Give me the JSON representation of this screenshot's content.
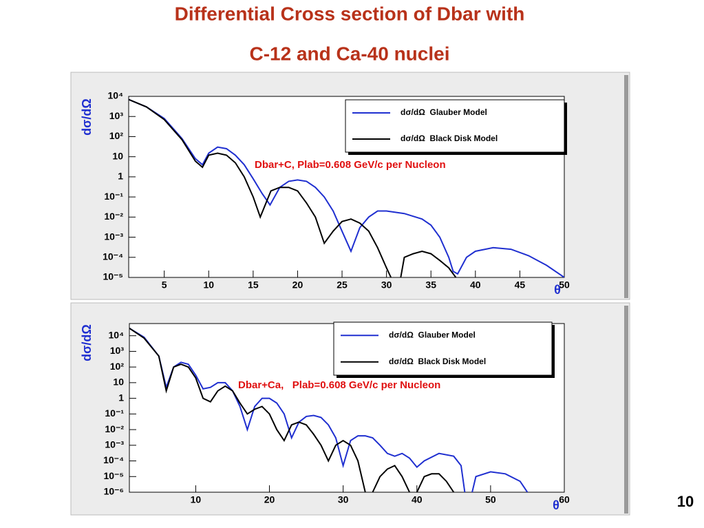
{
  "slide": {
    "title": [
      "Differential Cross section of Dbar  with",
      "C-12 and Ca-40 nuclei"
    ],
    "page_number": "10"
  },
  "chart_data": [
    {
      "type": "line",
      "log_y": true,
      "ylabel": "dσ/dΩ",
      "xlabel": "θ",
      "annotation": "Dbar+C, Plab=0.608 GeV/c per Nucleon",
      "xlim": [
        1,
        50
      ],
      "xticks": [
        5,
        10,
        15,
        20,
        25,
        30,
        35,
        40,
        45,
        50
      ],
      "ylim": [
        1e-05,
        10000
      ],
      "yticks": [
        {
          "value": 10000,
          "label": "10⁴"
        },
        {
          "value": 1000,
          "label": "10³"
        },
        {
          "value": 100,
          "label": "10²"
        },
        10,
        1,
        {
          "value": 0.1,
          "label": "10⁻¹"
        },
        {
          "value": 0.01,
          "label": "10⁻²"
        },
        {
          "value": 0.001,
          "label": "10⁻³"
        },
        {
          "value": 0.0001,
          "label": "10⁻⁴"
        },
        {
          "value": 1e-05,
          "label": "10⁻⁵"
        }
      ],
      "series": [
        {
          "name": "dσ/dΩ  Glauber Model",
          "color": "#1f2fd0",
          "x": [
            1,
            3,
            5,
            7,
            8.5,
            9.3,
            10,
            11,
            12,
            13,
            14,
            15,
            16,
            16.9,
            18,
            19,
            20,
            21,
            22,
            23,
            24,
            25,
            26,
            27,
            28,
            29,
            30,
            32,
            34,
            35,
            36,
            37,
            37.5,
            38,
            39,
            40,
            42,
            44,
            46,
            48,
            50
          ],
          "values": [
            7000,
            3000,
            800,
            80,
            8,
            4,
            15,
            30,
            25,
            12,
            4,
            0.8,
            0.15,
            0.04,
            0.3,
            0.6,
            0.7,
            0.6,
            0.3,
            0.1,
            0.02,
            0.002,
            0.0002,
            0.003,
            0.01,
            0.02,
            0.02,
            0.015,
            0.008,
            0.004,
            0.001,
            0.0001,
            2e-05,
            1.5e-05,
            0.0001,
            0.0002,
            0.0003,
            0.00025,
            0.00012,
            4e-05,
            1e-05
          ]
        },
        {
          "name": "dσ/dΩ  Black Disk Model",
          "color": "#000000",
          "x": [
            1,
            3,
            5,
            7,
            8.5,
            9.3,
            10,
            11,
            12,
            13,
            14,
            15,
            15.8,
            17,
            18,
            19,
            20,
            21,
            22,
            23,
            24,
            25,
            26,
            27,
            28,
            29,
            30,
            30.5,
            31,
            31.6,
            32,
            33,
            34,
            35,
            36,
            37,
            37.8
          ],
          "values": [
            7000,
            3000,
            700,
            70,
            6,
            3,
            12,
            15,
            12,
            5,
            1,
            0.1,
            0.01,
            0.2,
            0.3,
            0.3,
            0.2,
            0.05,
            0.01,
            0.0005,
            0.002,
            0.006,
            0.008,
            0.005,
            0.002,
            0.0003,
            3e-05,
            1e-05,
            null,
            1e-05,
            0.0001,
            0.00015,
            0.0002,
            0.00015,
            7e-05,
            3e-05,
            1e-05
          ]
        }
      ]
    },
    {
      "type": "line",
      "log_y": true,
      "ylabel": "dσ/dΩ",
      "xlabel": "θ",
      "annotation": "Dbar+Ca,   Plab=0.608 GeV/c per Nucleon",
      "xlim": [
        1,
        60
      ],
      "xticks": [
        10,
        20,
        30,
        40,
        50,
        60
      ],
      "ylim": [
        1e-06,
        60000
      ],
      "yticks": [
        {
          "value": 10000,
          "label": "10⁴"
        },
        {
          "value": 1000,
          "label": "10³"
        },
        {
          "value": 100,
          "label": "10²"
        },
        10,
        1,
        {
          "value": 0.1,
          "label": "10⁻¹"
        },
        {
          "value": 0.01,
          "label": "10⁻²"
        },
        {
          "value": 0.001,
          "label": "10⁻³"
        },
        {
          "value": 0.0001,
          "label": "10⁻⁴"
        },
        {
          "value": 1e-05,
          "label": "10⁻⁵"
        },
        {
          "value": 1e-06,
          "label": "10⁻⁶"
        }
      ],
      "series": [
        {
          "name": "dσ/dΩ  Glauber Model",
          "color": "#1f2fd0",
          "x": [
            1,
            3,
            5,
            6,
            7,
            8,
            9,
            10,
            11,
            12,
            13,
            14,
            15,
            16,
            17,
            18,
            19,
            20,
            21,
            22,
            23,
            24,
            25,
            26,
            27,
            28,
            29,
            30,
            31,
            32,
            33,
            34,
            35,
            36,
            37,
            38,
            39,
            40,
            41,
            43,
            45,
            46,
            46.5,
            47,
            47.5,
            48,
            50,
            52,
            54,
            55
          ],
          "values": [
            30000,
            8000,
            500,
            5,
            100,
            200,
            150,
            30,
            4,
            5,
            10,
            10,
            3,
            0.3,
            0.01,
            0.3,
            1,
            1,
            0.5,
            0.1,
            0.003,
            0.03,
            0.07,
            0.08,
            0.06,
            0.02,
            0.003,
            5e-05,
            0.002,
            0.004,
            0.004,
            0.003,
            0.001,
            0.0003,
            0.0002,
            0.0003,
            0.00015,
            4e-05,
            0.0001,
            0.0003,
            0.0002,
            5e-05,
            1e-06,
            null,
            1e-06,
            1e-05,
            2e-05,
            1.5e-05,
            5e-06,
            1e-06
          ]
        },
        {
          "name": "dσ/dΩ  Black Disk Model",
          "color": "#000000",
          "x": [
            1,
            3,
            5,
            6,
            7,
            8,
            9,
            10,
            11,
            12,
            13,
            14,
            15,
            16,
            17,
            18,
            19,
            20,
            21,
            22,
            23,
            24,
            25,
            26,
            27,
            28,
            29,
            30,
            31,
            32,
            33,
            33.5,
            34,
            35,
            36,
            37,
            38,
            39,
            39.5,
            40,
            41,
            42,
            43,
            44,
            45
          ],
          "values": [
            30000,
            7000,
            500,
            3,
            100,
            150,
            100,
            20,
            1,
            0.6,
            3,
            6,
            3,
            0.5,
            0.1,
            0.2,
            0.3,
            0.1,
            0.01,
            0.002,
            0.02,
            0.03,
            0.02,
            0.005,
            0.001,
            0.0001,
            0.001,
            0.002,
            0.001,
            0.0001,
            1e-06,
            null,
            1e-06,
            1e-05,
            3e-05,
            5e-05,
            1e-05,
            1e-06,
            null,
            1e-06,
            1e-05,
            1.5e-05,
            1.5e-05,
            5e-06,
            1e-06
          ]
        }
      ]
    }
  ]
}
